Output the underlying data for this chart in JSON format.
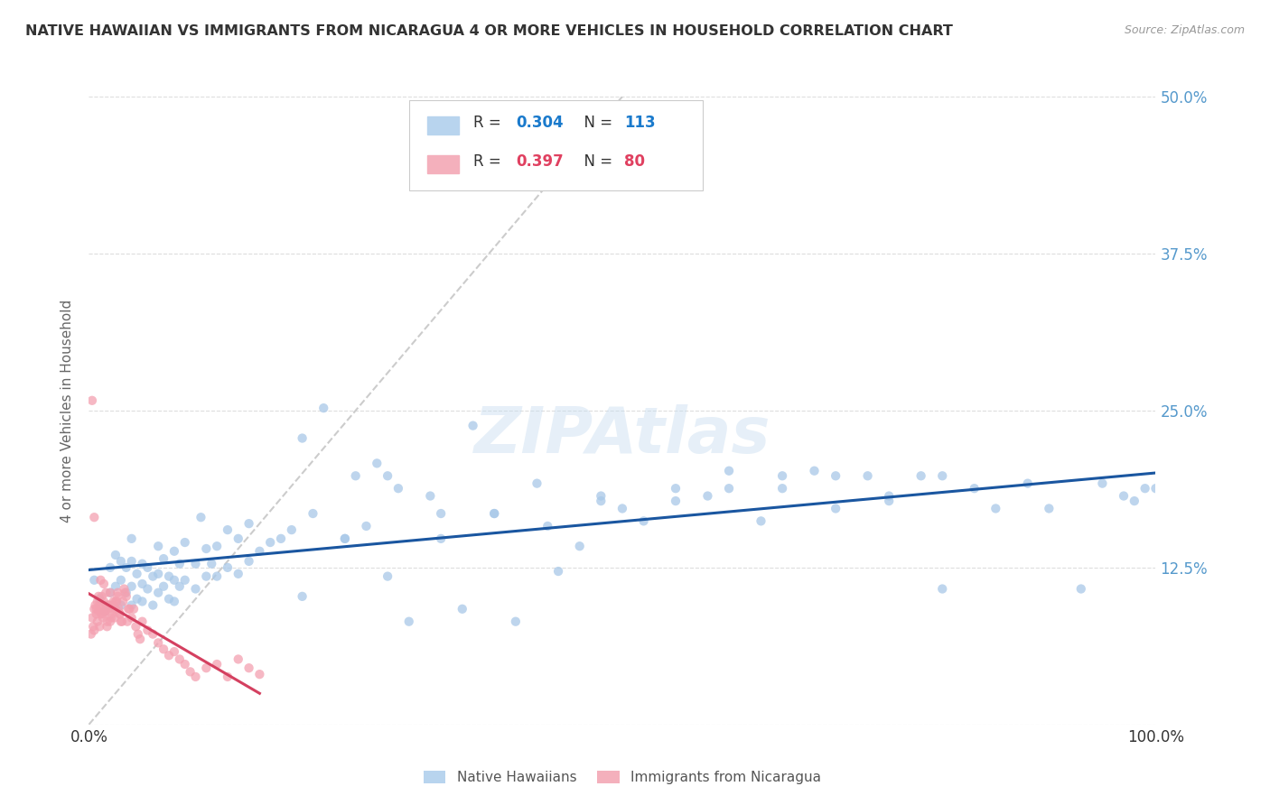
{
  "title": "NATIVE HAWAIIAN VS IMMIGRANTS FROM NICARAGUA 4 OR MORE VEHICLES IN HOUSEHOLD CORRELATION CHART",
  "source": "Source: ZipAtlas.com",
  "ylabel": "4 or more Vehicles in Household",
  "xlim": [
    0,
    1.0
  ],
  "ylim": [
    0,
    0.5
  ],
  "blue_color": "#a8c8e8",
  "pink_color": "#f4a0b0",
  "blue_line_color": "#1a56a0",
  "pink_line_color": "#d44060",
  "diagonal_color": "#cccccc",
  "watermark": "ZIPAtlas",
  "background_color": "#ffffff",
  "grid_color": "#dddddd",
  "title_color": "#333333",
  "right_tick_color": "#5599cc",
  "blue_scatter_alpha": 0.75,
  "pink_scatter_alpha": 0.75,
  "scatter_size": 55,
  "blue_points_x": [
    0.005,
    0.01,
    0.015,
    0.02,
    0.02,
    0.025,
    0.025,
    0.03,
    0.03,
    0.03,
    0.035,
    0.035,
    0.04,
    0.04,
    0.04,
    0.04,
    0.045,
    0.045,
    0.05,
    0.05,
    0.05,
    0.055,
    0.055,
    0.06,
    0.06,
    0.065,
    0.065,
    0.065,
    0.07,
    0.07,
    0.075,
    0.075,
    0.08,
    0.08,
    0.08,
    0.085,
    0.085,
    0.09,
    0.09,
    0.1,
    0.1,
    0.105,
    0.11,
    0.11,
    0.115,
    0.12,
    0.12,
    0.13,
    0.13,
    0.14,
    0.14,
    0.15,
    0.15,
    0.16,
    0.17,
    0.18,
    0.19,
    0.2,
    0.21,
    0.22,
    0.24,
    0.25,
    0.26,
    0.27,
    0.28,
    0.29,
    0.3,
    0.32,
    0.33,
    0.35,
    0.36,
    0.38,
    0.4,
    0.42,
    0.44,
    0.46,
    0.48,
    0.5,
    0.52,
    0.55,
    0.58,
    0.6,
    0.63,
    0.65,
    0.68,
    0.7,
    0.73,
    0.75,
    0.78,
    0.8,
    0.83,
    0.85,
    0.88,
    0.9,
    0.93,
    0.95,
    0.97,
    0.98,
    0.99,
    1.0,
    0.2,
    0.24,
    0.28,
    0.33,
    0.38,
    0.43,
    0.48,
    0.55,
    0.6,
    0.65,
    0.7,
    0.75,
    0.8
  ],
  "blue_points_y": [
    0.115,
    0.1,
    0.09,
    0.105,
    0.125,
    0.11,
    0.135,
    0.095,
    0.115,
    0.13,
    0.105,
    0.125,
    0.095,
    0.11,
    0.13,
    0.148,
    0.1,
    0.12,
    0.098,
    0.112,
    0.128,
    0.108,
    0.125,
    0.095,
    0.118,
    0.105,
    0.12,
    0.142,
    0.11,
    0.132,
    0.1,
    0.118,
    0.098,
    0.115,
    0.138,
    0.11,
    0.128,
    0.115,
    0.145,
    0.108,
    0.128,
    0.165,
    0.118,
    0.14,
    0.128,
    0.118,
    0.142,
    0.125,
    0.155,
    0.12,
    0.148,
    0.13,
    0.16,
    0.138,
    0.145,
    0.148,
    0.155,
    0.102,
    0.168,
    0.252,
    0.148,
    0.198,
    0.158,
    0.208,
    0.118,
    0.188,
    0.082,
    0.182,
    0.168,
    0.092,
    0.238,
    0.168,
    0.082,
    0.192,
    0.122,
    0.142,
    0.182,
    0.172,
    0.162,
    0.188,
    0.182,
    0.202,
    0.162,
    0.198,
    0.202,
    0.172,
    0.198,
    0.182,
    0.198,
    0.108,
    0.188,
    0.172,
    0.192,
    0.172,
    0.108,
    0.192,
    0.182,
    0.178,
    0.188,
    0.188,
    0.228,
    0.148,
    0.198,
    0.148,
    0.168,
    0.158,
    0.178,
    0.178,
    0.188,
    0.188,
    0.198,
    0.178,
    0.198
  ],
  "pink_points_x": [
    0.002,
    0.003,
    0.004,
    0.005,
    0.005,
    0.006,
    0.007,
    0.008,
    0.008,
    0.009,
    0.01,
    0.01,
    0.011,
    0.012,
    0.012,
    0.013,
    0.014,
    0.014,
    0.015,
    0.016,
    0.016,
    0.017,
    0.018,
    0.019,
    0.02,
    0.02,
    0.021,
    0.022,
    0.023,
    0.024,
    0.025,
    0.026,
    0.027,
    0.028,
    0.029,
    0.03,
    0.032,
    0.034,
    0.036,
    0.038,
    0.04,
    0.042,
    0.044,
    0.046,
    0.048,
    0.05,
    0.055,
    0.06,
    0.065,
    0.07,
    0.075,
    0.08,
    0.085,
    0.09,
    0.095,
    0.1,
    0.11,
    0.12,
    0.13,
    0.14,
    0.15,
    0.16,
    0.003,
    0.005,
    0.007,
    0.009,
    0.011,
    0.013,
    0.015,
    0.017,
    0.019,
    0.021,
    0.023,
    0.025,
    0.027,
    0.029,
    0.031,
    0.033,
    0.035,
    0.037
  ],
  "pink_points_y": [
    0.072,
    0.085,
    0.078,
    0.092,
    0.075,
    0.095,
    0.088,
    0.082,
    0.098,
    0.09,
    0.078,
    0.095,
    0.088,
    0.092,
    0.102,
    0.085,
    0.098,
    0.112,
    0.09,
    0.095,
    0.105,
    0.078,
    0.092,
    0.095,
    0.082,
    0.105,
    0.088,
    0.095,
    0.098,
    0.085,
    0.092,
    0.098,
    0.105,
    0.092,
    0.088,
    0.082,
    0.098,
    0.105,
    0.082,
    0.092,
    0.085,
    0.092,
    0.078,
    0.072,
    0.068,
    0.082,
    0.075,
    0.072,
    0.065,
    0.06,
    0.055,
    0.058,
    0.052,
    0.048,
    0.042,
    0.038,
    0.045,
    0.048,
    0.038,
    0.052,
    0.045,
    0.04,
    0.258,
    0.165,
    0.092,
    0.102,
    0.115,
    0.088,
    0.09,
    0.082,
    0.095,
    0.085,
    0.092,
    0.098,
    0.102,
    0.088,
    0.082,
    0.108,
    0.102,
    0.092
  ]
}
